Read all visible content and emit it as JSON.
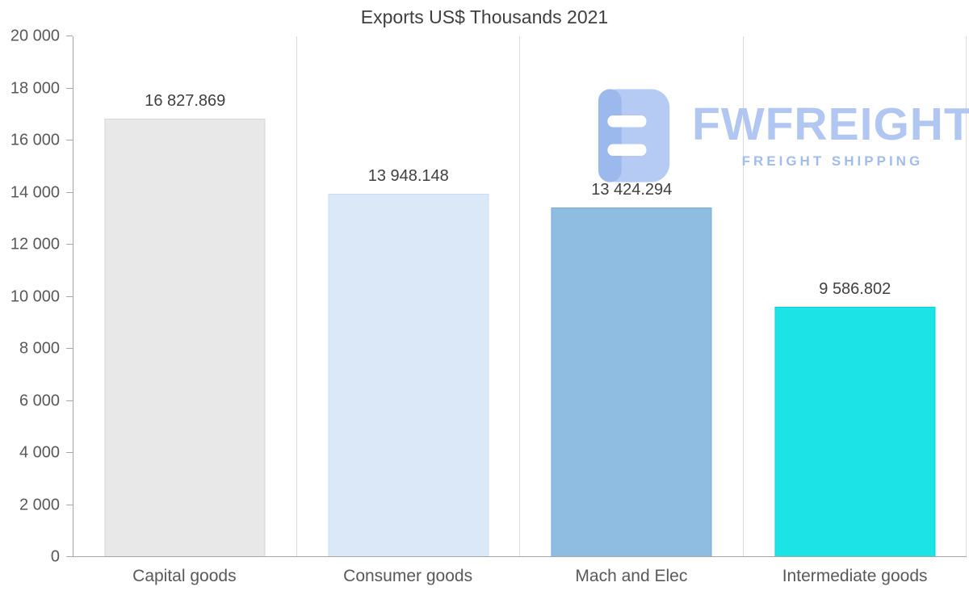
{
  "watermark": {
    "name": "FWFREIGHT",
    "subtitle": "FREIGHT SHIPPING",
    "color": "#b1c7f2"
  },
  "chart_data": {
    "type": "bar",
    "title": "Exports US$ Thousands 2021",
    "categories": [
      "Capital goods",
      "Consumer goods",
      "Mach and Elec",
      "Intermediate goods"
    ],
    "values": [
      16827.869,
      13948.148,
      13424.294,
      9586.802
    ],
    "value_labels": [
      "16 827.869",
      "13 948.148",
      "13 424.294",
      "9 586.802"
    ],
    "bar_colors": [
      "#e8e8e8",
      "#dbe8f8",
      "#8fbce1",
      "#1ce3e6"
    ],
    "bar_border_colors": [
      "#d6d6d6",
      "#c9dcf2",
      "#7dadd6",
      "#10d0d6"
    ],
    "xlabel": "",
    "ylabel": "",
    "ylim": [
      0,
      20000
    ],
    "ytick_step": 2000,
    "ytick_labels": [
      "0",
      "2 000",
      "4 000",
      "6 000",
      "8 000",
      "10 000",
      "12 000",
      "14 000",
      "16 000",
      "18 000",
      "20 000"
    ],
    "grid": "vertical-category-boundaries",
    "legend": "none"
  }
}
